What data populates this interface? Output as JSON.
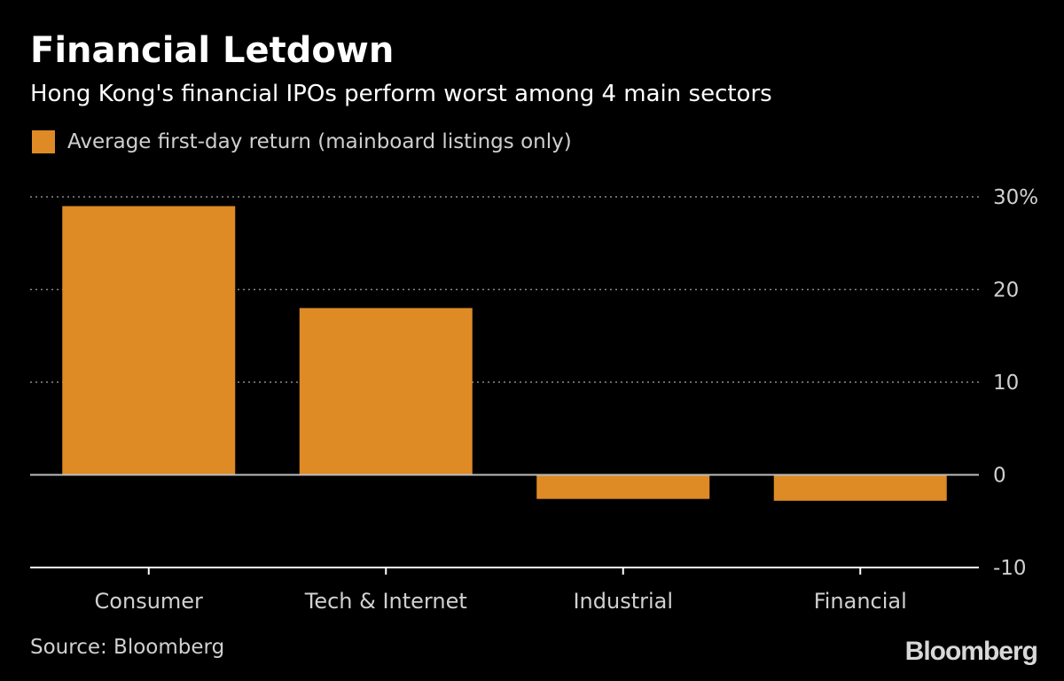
{
  "chart_data": {
    "type": "bar",
    "title": "Financial Letdown",
    "subtitle": "Hong Kong's financial IPOs perform worst among 4 main sectors",
    "categories": [
      "Consumer",
      "Tech & Internet",
      "Industrial",
      "Financial"
    ],
    "series": [
      {
        "name": "Average first-day return (mainboard listings only)",
        "values": [
          29,
          18,
          -2.6,
          -2.8
        ],
        "color": "#de8a25"
      }
    ],
    "xlabel": "",
    "ylabel": "",
    "ylim": [
      -10,
      30
    ],
    "yticks": [
      30,
      20,
      10,
      0,
      -10
    ],
    "ytick_labels": [
      "30%",
      "20",
      "10",
      "0",
      "-10"
    ],
    "grid": true,
    "legend": "top-left",
    "axis_position": "right"
  },
  "source": "Source: Bloomberg",
  "brand": "Bloomberg",
  "colors": {
    "background": "#000000",
    "bar": "#de8a25",
    "text": "#ffffff",
    "muted_text": "#d0d0d0",
    "gridline": "#8a8a8a",
    "zero_line": "#ffffff"
  }
}
